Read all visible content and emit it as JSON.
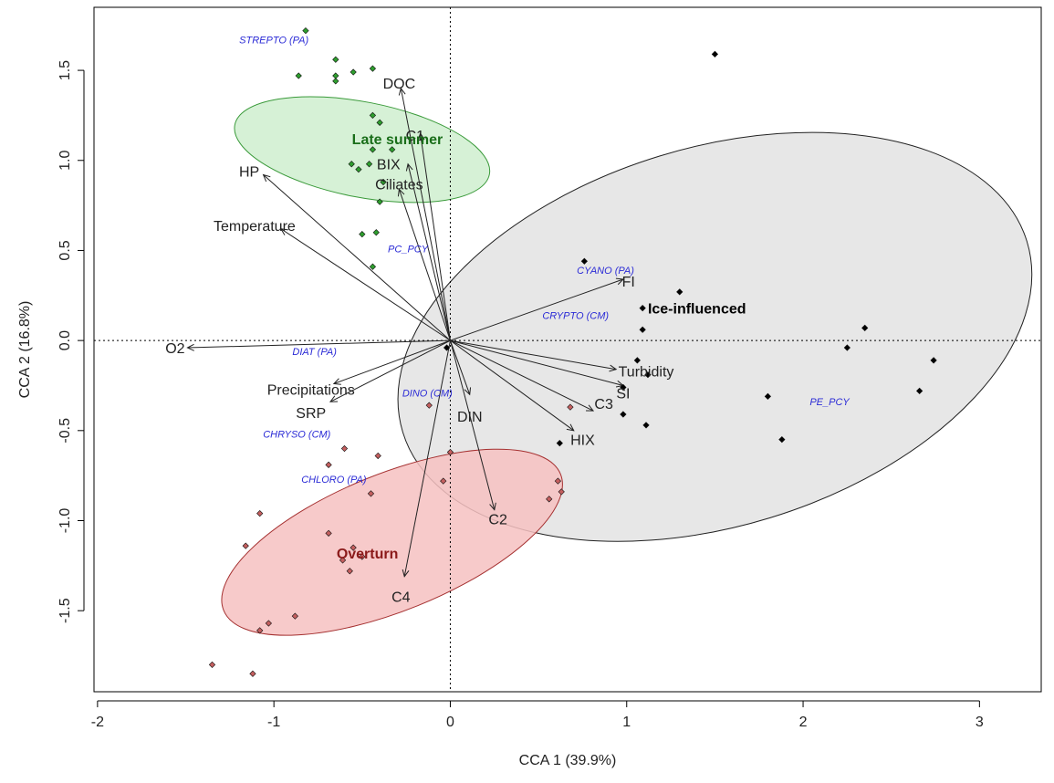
{
  "chart_data": {
    "type": "scatter",
    "xlabel": "CCA 1 (39.9%)",
    "ylabel": "CCA 2 (16.8%)",
    "xlim": [
      -2.02,
      3.35
    ],
    "ylim": [
      -1.95,
      1.85
    ],
    "xticks": [
      -2,
      -1,
      0,
      1,
      2,
      3
    ],
    "yticks": [
      -1.5,
      -1.0,
      -0.5,
      0.0,
      0.5,
      1.0,
      1.5
    ],
    "xtick_labels": [
      "-2",
      "-1",
      "0",
      "1",
      "2",
      "3"
    ],
    "ytick_labels": [
      "-1.5",
      "-1.0",
      "-0.5",
      "0.0",
      "0.5",
      "1.0",
      "1.5"
    ],
    "reference_lines": {
      "x": 0,
      "y": 0,
      "style": "dotted"
    },
    "groups": [
      {
        "name": "Late summer",
        "label_pos": [
          -0.3,
          1.12
        ],
        "color": "#2e9e2e",
        "label_color": "#1a6e1a",
        "fill": "#cfeecf",
        "stroke": "#3a9a3a",
        "ellipse": {
          "center": [
            -0.5,
            1.06
          ],
          "rx": 0.27,
          "ry": 0.72,
          "angle_deg": 79
        },
        "points": [
          [
            -0.82,
            1.72
          ],
          [
            -0.86,
            1.47
          ],
          [
            -0.65,
            1.56
          ],
          [
            -0.55,
            1.49
          ],
          [
            -0.65,
            1.47
          ],
          [
            -0.65,
            1.44
          ],
          [
            -0.44,
            1.51
          ],
          [
            -0.44,
            1.25
          ],
          [
            -0.4,
            1.21
          ],
          [
            -0.33,
            1.06
          ],
          [
            -0.44,
            1.06
          ],
          [
            -0.56,
            0.98
          ],
          [
            -0.52,
            0.95
          ],
          [
            -0.38,
            0.88
          ],
          [
            -0.46,
            0.98
          ],
          [
            -0.4,
            0.77
          ],
          [
            -0.5,
            0.59
          ],
          [
            -0.42,
            0.6
          ],
          [
            -0.44,
            0.41
          ]
        ]
      },
      {
        "name": "Ice-influenced",
        "label_pos": [
          1.12,
          0.18
        ],
        "color": "#000000",
        "label_color": "#000000",
        "fill": "#e3e3e3",
        "stroke": "#222222",
        "ellipse": {
          "center": [
            1.5,
            0.02
          ],
          "rx": 1.85,
          "ry": 1.05,
          "angle_deg": 17
        },
        "points": [
          [
            1.5,
            1.59
          ],
          [
            0.76,
            0.44
          ],
          [
            1.3,
            0.27
          ],
          [
            1.09,
            0.18
          ],
          [
            1.09,
            0.06
          ],
          [
            2.35,
            0.07
          ],
          [
            2.25,
            -0.04
          ],
          [
            2.74,
            -0.11
          ],
          [
            2.66,
            -0.28
          ],
          [
            1.06,
            -0.11
          ],
          [
            1.12,
            -0.19
          ],
          [
            0.98,
            -0.26
          ],
          [
            0.98,
            -0.41
          ],
          [
            1.11,
            -0.47
          ],
          [
            1.8,
            -0.31
          ],
          [
            1.88,
            -0.55
          ],
          [
            0.62,
            -0.57
          ],
          [
            -0.02,
            -0.04
          ]
        ]
      },
      {
        "name": "Overturn",
        "label_pos": [
          -0.47,
          -1.18
        ],
        "color": "#c45f5f",
        "label_color": "#8b1a1a",
        "fill": "#f6c1c1",
        "stroke": "#a53030",
        "ellipse": {
          "center": [
            -0.33,
            -1.12
          ],
          "rx": 1.03,
          "ry": 0.38,
          "angle_deg": 22
        },
        "points": [
          [
            -0.41,
            -0.64
          ],
          [
            -0.6,
            -0.6
          ],
          [
            -0.69,
            -0.69
          ],
          [
            -0.45,
            -0.85
          ],
          [
            -1.08,
            -0.96
          ],
          [
            -1.16,
            -1.14
          ],
          [
            -0.69,
            -1.07
          ],
          [
            -0.55,
            -1.15
          ],
          [
            -0.5,
            -1.2
          ],
          [
            -0.61,
            -1.22
          ],
          [
            -0.57,
            -1.28
          ],
          [
            -0.88,
            -1.53
          ],
          [
            -1.03,
            -1.57
          ],
          [
            -1.08,
            -1.61
          ],
          [
            -1.35,
            -1.8
          ],
          [
            -1.12,
            -1.85
          ],
          [
            0.68,
            -0.37
          ],
          [
            0.56,
            -0.88
          ],
          [
            0.61,
            -0.78
          ],
          [
            0.63,
            -0.84
          ],
          [
            -0.04,
            -0.78
          ],
          [
            0.0,
            -0.62
          ],
          [
            -0.12,
            -0.36
          ]
        ]
      }
    ],
    "vectors": [
      {
        "name": "DOC",
        "x": -0.28,
        "y": 1.4,
        "label": [
          -0.29,
          1.43
        ]
      },
      {
        "name": "C1",
        "x": -0.17,
        "y": 1.15,
        "label": [
          -0.2,
          1.14
        ]
      },
      {
        "name": "BIX",
        "x": -0.24,
        "y": 0.98,
        "label": [
          -0.35,
          0.98
        ]
      },
      {
        "name": "Ciliates",
        "x": -0.29,
        "y": 0.84,
        "label": [
          -0.29,
          0.87
        ]
      },
      {
        "name": "HP",
        "x": -1.06,
        "y": 0.92,
        "label": [
          -1.14,
          0.94
        ]
      },
      {
        "name": "Temperature",
        "x": -0.96,
        "y": 0.62,
        "label": [
          -1.11,
          0.64
        ]
      },
      {
        "name": "O2",
        "x": -1.49,
        "y": -0.04,
        "label": [
          -1.56,
          -0.04
        ]
      },
      {
        "name": "Precipitations",
        "x": -0.66,
        "y": -0.24,
        "label": [
          -0.79,
          -0.27
        ]
      },
      {
        "name": "SRP",
        "x": -0.68,
        "y": -0.34,
        "label": [
          -0.79,
          -0.4
        ]
      },
      {
        "name": "FI",
        "x": 0.98,
        "y": 0.34,
        "label": [
          1.01,
          0.33
        ]
      },
      {
        "name": "Turbidity",
        "x": 0.94,
        "y": -0.16,
        "label": [
          1.11,
          -0.17
        ]
      },
      {
        "name": "SI",
        "x": 0.98,
        "y": -0.25,
        "label": [
          0.98,
          -0.29
        ]
      },
      {
        "name": "C3",
        "x": 0.81,
        "y": -0.39,
        "label": [
          0.87,
          -0.35
        ]
      },
      {
        "name": "HIX",
        "x": 0.7,
        "y": -0.5,
        "label": [
          0.75,
          -0.55
        ]
      },
      {
        "name": "DIN",
        "x": 0.11,
        "y": -0.3,
        "label": [
          0.11,
          -0.42
        ]
      },
      {
        "name": "C2",
        "x": 0.25,
        "y": -0.94,
        "label": [
          0.27,
          -0.99
        ]
      },
      {
        "name": "C4",
        "x": -0.26,
        "y": -1.31,
        "label": [
          -0.28,
          -1.42
        ]
      }
    ],
    "taxa": [
      {
        "name": "STREPTO (PA)",
        "x": -1.0,
        "y": 1.65
      },
      {
        "name": "PC_PCY",
        "x": -0.24,
        "y": 0.49
      },
      {
        "name": "CYANO (PA)",
        "x": 0.88,
        "y": 0.37
      },
      {
        "name": "CRYPTO (CM)",
        "x": 0.71,
        "y": 0.12
      },
      {
        "name": "DIAT (PA)",
        "x": -0.77,
        "y": -0.08
      },
      {
        "name": "DINO (CM)",
        "x": -0.13,
        "y": -0.31
      },
      {
        "name": "CHRYSO (CM)",
        "x": -0.87,
        "y": -0.54
      },
      {
        "name": "CHLORO (PA)",
        "x": -0.66,
        "y": -0.79
      },
      {
        "name": "PE_PCY",
        "x": 2.15,
        "y": -0.36
      }
    ]
  }
}
